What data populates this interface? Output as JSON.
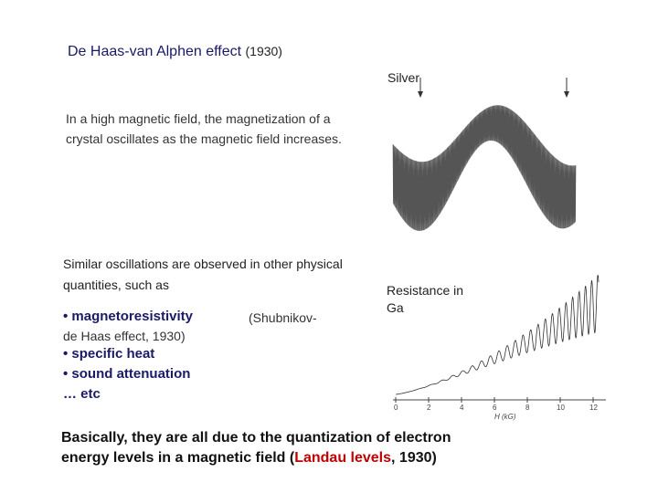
{
  "title": {
    "main": "De Haas-van Alphen effect",
    "year": "(1930)"
  },
  "silver_label": "Silver",
  "intro": "In a high magnetic field, the magnetization of a crystal oscillates as the magnetic field increases.",
  "similar": "Similar oscillations are observed in other physical quantities, such as",
  "bullets": {
    "magnetoresistivity": "• magnetoresistivity",
    "shubnikov": "(Shubnikov-",
    "dehaas": "de Haas effect, 1930)",
    "specific_heat": "• specific heat",
    "sound_attenuation": "• sound attenuation",
    "etc": "… etc"
  },
  "resistance_label": "Resistance in Ga",
  "summary": {
    "before": "Basically, they are all due to the quantization of electron energy levels in a magnetic field (",
    "highlight": "Landau levels",
    "after": ", 1930)"
  },
  "sdh_axis": {
    "tick_labels": [
      "0",
      "2",
      "4",
      "6",
      "8",
      "10",
      "12"
    ],
    "xlabel": "H (kG)"
  },
  "colors": {
    "heading": "#1a1a66",
    "highlight": "#c00000"
  }
}
